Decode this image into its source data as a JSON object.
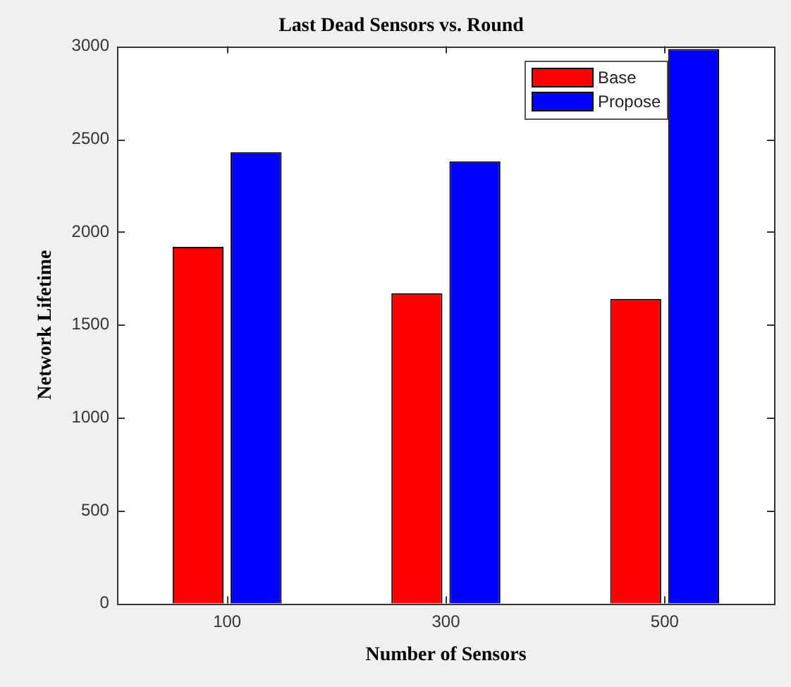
{
  "chart_data": {
    "type": "bar",
    "title": "Last Dead Sensors vs. Round",
    "xlabel": "Number of Sensors",
    "ylabel": "Network Lifetime",
    "categories": [
      "100",
      "300",
      "500"
    ],
    "series": [
      {
        "name": "Base",
        "color": "#ff0000",
        "values": [
          1920,
          1670,
          1640
        ]
      },
      {
        "name": "Propose",
        "color": "#0000ff",
        "values": [
          2430,
          2380,
          2985
        ]
      }
    ],
    "ylim": [
      0,
      3000
    ],
    "yticks": [
      0,
      500,
      1000,
      1500,
      2000,
      2500,
      3000
    ],
    "grid": false,
    "legend": "top right"
  }
}
